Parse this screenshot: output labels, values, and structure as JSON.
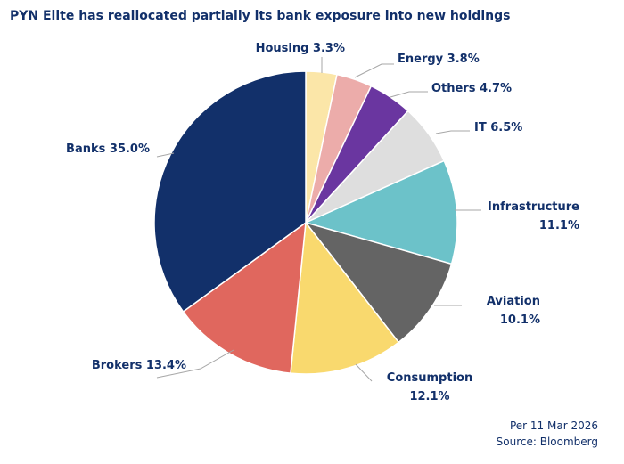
{
  "chart_data": {
    "type": "pie",
    "title": "PYN Elite has reallocated partially its bank exposure into new holdings",
    "slices": [
      {
        "name": "Housing",
        "value": 3.3,
        "label": "Housing 3.3%",
        "color": "#fbe6a8"
      },
      {
        "name": "Energy",
        "value": 3.8,
        "label": "Energy 3.8%",
        "color": "#ecacaa"
      },
      {
        "name": "Others",
        "value": 4.7,
        "label": "Others 4.7%",
        "color": "#6a36a0"
      },
      {
        "name": "IT",
        "value": 6.5,
        "label": "IT 6.5%",
        "color": "#dedede"
      },
      {
        "name": "Infrastructure",
        "value": 11.1,
        "label": "Infrastructure 11.1%",
        "label_lines": [
          "Infrastructure",
          "11.1%"
        ],
        "color": "#6cc2c9"
      },
      {
        "name": "Aviation",
        "value": 10.1,
        "label": "Aviation 10.1%",
        "label_lines": [
          "Aviation",
          "10.1%"
        ],
        "color": "#646464"
      },
      {
        "name": "Consumption",
        "value": 12.1,
        "label": "Consumption 12.1%",
        "label_lines": [
          "Consumption",
          "12.1%"
        ],
        "color": "#f9d96e"
      },
      {
        "name": "Brokers",
        "value": 13.4,
        "label": "Brokers 13.4%",
        "color": "#e0675e"
      },
      {
        "name": "Banks",
        "value": 35.0,
        "label": "Banks 35.0%",
        "color": "#12306a"
      }
    ],
    "start": "12 o'clock",
    "direction": "clockwise",
    "legend": "none (labels beside slices)"
  },
  "footer": {
    "date": "Per 11 Mar 2026",
    "source": "Source: Bloomberg"
  }
}
